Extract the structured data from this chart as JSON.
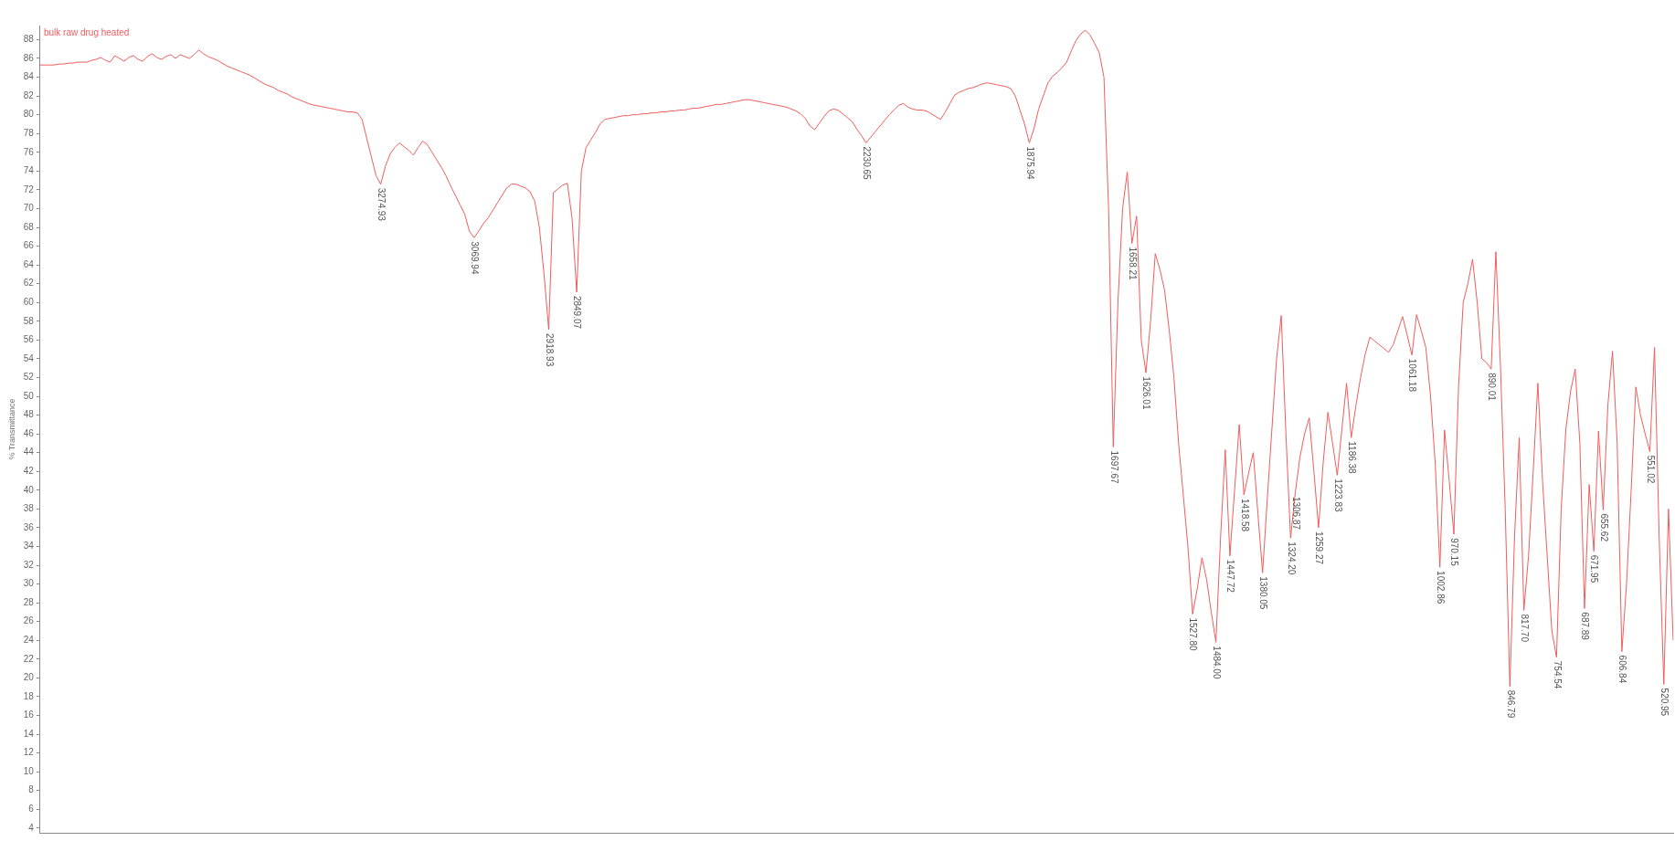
{
  "chart_data": {
    "type": "line",
    "ylabel": "% Transmittance",
    "tick_labels": "y",
    "ylim": [
      3.5,
      89.5
    ],
    "yticks": [
      4,
      6,
      8,
      10,
      12,
      14,
      16,
      18,
      20,
      22,
      24,
      26,
      28,
      30,
      32,
      34,
      36,
      38,
      40,
      42,
      44,
      46,
      48,
      50,
      52,
      54,
      56,
      58,
      60,
      62,
      64,
      66,
      68,
      70,
      72,
      74,
      76,
      78,
      80,
      82,
      84,
      86,
      88
    ],
    "categories": [
      null,
      null,
      null,
      null,
      null,
      null,
      null,
      null,
      null,
      null,
      null,
      null,
      null,
      null,
      null,
      null,
      null,
      null,
      null,
      null,
      null,
      null,
      null,
      null,
      null,
      null,
      null,
      null,
      null,
      null,
      null,
      null,
      null,
      null,
      null,
      null,
      null,
      null,
      null,
      null,
      null,
      null,
      null,
      null,
      null,
      null,
      null,
      null,
      null,
      null,
      null,
      null,
      null,
      null,
      null,
      null,
      null,
      null,
      null,
      null,
      null,
      null,
      null,
      null,
      null,
      null,
      null,
      null,
      null,
      null,
      null,
      null,
      null,
      null,
      null,
      null,
      null,
      null,
      null,
      null,
      null,
      null,
      null,
      null,
      null,
      null,
      null,
      null,
      null,
      null,
      null,
      null,
      null,
      null,
      null,
      null,
      null,
      null,
      null,
      null,
      null,
      null,
      null,
      null,
      null,
      null,
      null,
      null,
      null,
      null,
      null,
      null,
      null,
      null,
      null,
      null,
      null,
      null,
      null,
      null,
      null,
      null,
      null,
      null,
      null,
      null,
      null,
      null,
      null,
      null,
      null,
      null,
      null,
      null,
      null,
      null,
      null,
      null,
      null,
      null,
      null,
      null,
      null,
      null,
      null,
      null,
      null,
      null,
      null,
      null,
      null,
      null,
      null,
      null,
      null,
      null,
      null,
      null,
      null,
      null,
      null,
      null,
      null,
      null,
      null,
      null,
      null,
      null,
      null,
      null,
      null,
      null,
      null,
      null,
      null,
      null,
      null,
      null,
      null,
      null,
      null,
      null,
      null,
      null,
      null,
      null,
      null,
      null,
      null,
      null,
      null,
      null,
      null,
      null,
      null,
      null,
      null,
      null,
      null,
      null,
      null,
      null,
      null,
      null,
      null,
      null,
      null,
      null,
      null,
      null,
      null,
      null,
      null,
      null,
      null,
      null,
      null,
      null,
      null,
      null,
      null,
      null,
      null,
      null,
      null,
      null,
      null,
      null,
      null,
      null,
      null,
      null,
      null,
      null,
      null,
      null,
      null,
      null,
      null,
      null,
      null,
      null,
      null,
      null,
      null,
      null,
      null,
      null,
      null,
      null,
      null,
      null,
      null,
      null,
      null,
      null,
      null,
      null,
      null,
      null,
      null,
      null,
      null,
      null,
      null,
      null,
      null,
      null,
      null,
      null,
      null,
      null,
      null,
      null,
      null,
      null,
      null,
      null,
      null,
      null,
      null,
      null,
      null,
      null,
      null,
      null,
      null,
      null,
      null,
      null,
      null,
      null,
      null,
      null,
      null,
      null,
      null,
      null,
      null,
      null,
      null,
      null,
      null,
      null,
      null,
      null,
      null,
      null,
      null,
      null,
      null,
      null,
      null,
      null,
      null,
      null,
      null,
      null,
      null,
      null,
      null,
      null,
      null,
      null,
      null,
      null,
      null,
      null,
      null,
      null,
      null,
      null,
      null,
      null,
      null,
      null,
      null,
      null,
      null,
      null,
      null,
      null,
      null,
      null,
      null,
      null,
      null,
      null,
      null,
      null,
      null
    ],
    "series": [
      {
        "name": "bulk raw drug heated",
        "color": "#f25c5c",
        "values": [
          85.3,
          85.3,
          85.3,
          85.3,
          85.4,
          85.4,
          85.5,
          85.5,
          85.6,
          85.6,
          85.6,
          85.8,
          85.9,
          86.1,
          85.8,
          85.6,
          86.3,
          86.0,
          85.7,
          86.1,
          86.3,
          85.9,
          85.7,
          86.2,
          86.5,
          86.1,
          85.9,
          86.2,
          86.4,
          86.0,
          86.4,
          86.2,
          86.0,
          86.4,
          86.9,
          86.5,
          86.2,
          86.0,
          85.8,
          85.5,
          85.2,
          85.0,
          84.8,
          84.6,
          84.4,
          84.2,
          83.9,
          83.6,
          83.3,
          83.1,
          82.9,
          82.6,
          82.4,
          82.2,
          81.9,
          81.7,
          81.5,
          81.3,
          81.1,
          81.0,
          80.9,
          80.8,
          80.7,
          80.6,
          80.5,
          80.4,
          80.3,
          80.3,
          80.2,
          79.5,
          77.5,
          75.5,
          73.5,
          72.6,
          74.5,
          75.8,
          76.5,
          77.0,
          76.6,
          76.2,
          75.7,
          76.5,
          77.2,
          76.8,
          76.0,
          75.2,
          74.4,
          73.5,
          72.4,
          71.4,
          70.4,
          69.4,
          67.6,
          66.9,
          67.6,
          68.4,
          69.0,
          69.8,
          70.6,
          71.4,
          72.2,
          72.6,
          72.6,
          72.4,
          72.2,
          71.8,
          70.8,
          68.0,
          63.0,
          57.1,
          71.7,
          72.1,
          72.5,
          72.7,
          69.0,
          61.1,
          74.0,
          76.5,
          77.3,
          78.1,
          79.0,
          79.5,
          79.6,
          79.7,
          79.8,
          79.9,
          79.9,
          80.0,
          80.0,
          80.1,
          80.1,
          80.2,
          80.2,
          80.3,
          80.3,
          80.4,
          80.4,
          80.5,
          80.5,
          80.6,
          80.7,
          80.7,
          80.8,
          80.9,
          81.0,
          81.1,
          81.1,
          81.2,
          81.3,
          81.4,
          81.5,
          81.6,
          81.6,
          81.5,
          81.4,
          81.3,
          81.2,
          81.1,
          81.0,
          80.9,
          80.8,
          80.6,
          80.4,
          80.1,
          79.6,
          78.8,
          78.4,
          79.1,
          79.8,
          80.4,
          80.6,
          80.5,
          80.1,
          79.7,
          79.3,
          78.5,
          77.8,
          77.0,
          77.6,
          78.2,
          78.8,
          79.4,
          80.0,
          80.5,
          81.0,
          81.2,
          80.8,
          80.6,
          80.5,
          80.5,
          80.4,
          80.1,
          79.8,
          79.5,
          80.3,
          81.2,
          82.1,
          82.4,
          82.6,
          82.8,
          82.9,
          83.1,
          83.3,
          83.4,
          83.3,
          83.2,
          83.1,
          83.0,
          82.8,
          82.0,
          80.5,
          79.0,
          77.0,
          78.5,
          80.6,
          82.0,
          83.4,
          84.1,
          84.5,
          85.0,
          85.6,
          86.8,
          87.9,
          88.6,
          89.0,
          88.5,
          87.6,
          86.6,
          84.0,
          70.0,
          44.6,
          60.0,
          70.0,
          73.9,
          66.3,
          69.2,
          56.0,
          52.5,
          58.0,
          65.2,
          63.5,
          61.3,
          57.0,
          52.0,
          45.0,
          39.5,
          34.0,
          26.8,
          29.5,
          32.8,
          30.5,
          27.0,
          23.8,
          35.0,
          44.3,
          33.0,
          40.0,
          47.0,
          39.5,
          41.8,
          44.0,
          37.5,
          31.2,
          39.0,
          46.5,
          54.0,
          58.6,
          46.0,
          34.9,
          39.7,
          43.5,
          46.0,
          47.7,
          42.0,
          36.0,
          43.0,
          48.3,
          45.0,
          41.6,
          46.5,
          51.4,
          45.6,
          49.0,
          52.0,
          54.5,
          56.3,
          55.9,
          55.5,
          55.1,
          54.7,
          55.5,
          57.0,
          58.5,
          56.5,
          54.4,
          58.7,
          57.0,
          55.2,
          50.0,
          42.9,
          31.8,
          46.4,
          41.0,
          35.3,
          51.0,
          60.0,
          62.0,
          64.6,
          60.0,
          54.0,
          53.6,
          52.9,
          65.4,
          53.0,
          38.0,
          19.1,
          35.0,
          45.6,
          27.2,
          33.0,
          42.0,
          51.4,
          41.0,
          33.0,
          25.0,
          22.2,
          38.0,
          46.5,
          50.5,
          52.9,
          45.0,
          27.4,
          40.6,
          33.5,
          46.3,
          37.9,
          49.0,
          54.8,
          45.0,
          22.8,
          30.0,
          40.0,
          51.0,
          48.0,
          46.0,
          44.1,
          55.2,
          35.0,
          19.3,
          38.0,
          24.0
        ]
      }
    ],
    "annotations": [
      {
        "text": "3274.93",
        "y": 72.6
      },
      {
        "text": "3069.94",
        "y": 66.9
      },
      {
        "text": "2918.93",
        "y": 57.1
      },
      {
        "text": "2849.07",
        "y": 61.1
      },
      {
        "text": "2230.65",
        "y": 77
      },
      {
        "text": "1875.94",
        "y": 77
      },
      {
        "text": "1697.67",
        "y": 44.6
      },
      {
        "text": "1658.21",
        "y": 66.3
      },
      {
        "text": "1626.01",
        "y": 52.5
      },
      {
        "text": "1527.80",
        "y": 26.8
      },
      {
        "text": "1484.00",
        "y": 23.8
      },
      {
        "text": "1447.72",
        "y": 33
      },
      {
        "text": "1418.58",
        "y": 39.5
      },
      {
        "text": "1380.05",
        "y": 31.2
      },
      {
        "text": "1324.20",
        "y": 34.9
      },
      {
        "text": "1306.87",
        "y": 39.7
      },
      {
        "text": "1259.27",
        "y": 36
      },
      {
        "text": "1223.83",
        "y": 41.6
      },
      {
        "text": "1186.38",
        "y": 45.6
      },
      {
        "text": "1061.18",
        "y": 54.4
      },
      {
        "text": "1002.86",
        "y": 31.8
      },
      {
        "text": "970.15",
        "y": 35.3
      },
      {
        "text": "890.01",
        "y": 52.9
      },
      {
        "text": "846.79",
        "y": 19.1
      },
      {
        "text": "817.70",
        "y": 27.2
      },
      {
        "text": "754.54",
        "y": 22.2
      },
      {
        "text": "687.89",
        "y": 27.4
      },
      {
        "text": "671.95",
        "y": 33.5
      },
      {
        "text": "655.62",
        "y": 37.9
      },
      {
        "text": "606.84",
        "y": 22.8
      },
      {
        "text": "551.02",
        "y": 44.1
      },
      {
        "text": "520.95",
        "y": 19.3
      }
    ]
  }
}
